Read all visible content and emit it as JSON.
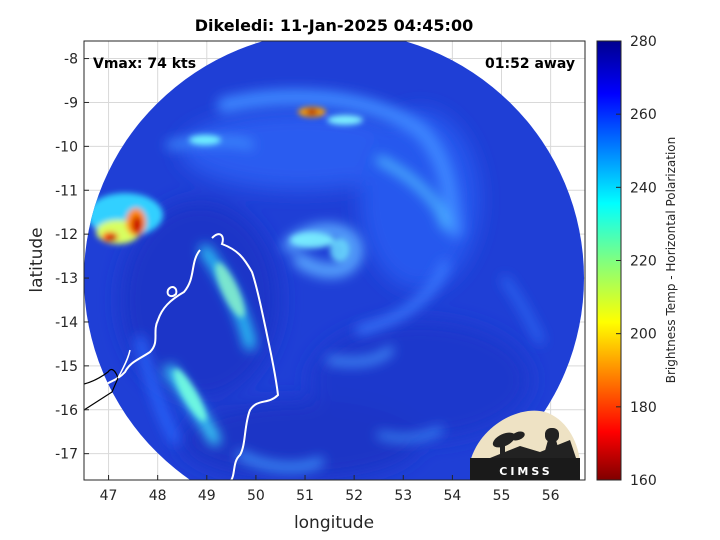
{
  "title": "Dikeledi: 11-Jan-2025 04:45:00",
  "annotations": {
    "vmax": "Vmax: 74 kts",
    "time_offset": "01:52 away"
  },
  "axes": {
    "xlabel": "longitude",
    "ylabel": "latitude",
    "xlim": [
      46.5,
      56.7
    ],
    "ylim": [
      -17.6,
      -7.6
    ],
    "xticks": [
      "47",
      "48",
      "49",
      "50",
      "51",
      "52",
      "53",
      "54",
      "55",
      "56"
    ],
    "yticks": [
      "-8",
      "-9",
      "-10",
      "-11",
      "-12",
      "-13",
      "-14",
      "-15",
      "-16",
      "-17"
    ],
    "grid": true
  },
  "colorbar": {
    "label": "Brightness Temp - Horizontal Polarization",
    "range": [
      160,
      280
    ],
    "ticks": [
      "280",
      "260",
      "240",
      "220",
      "200",
      "180",
      "160"
    ],
    "colormap": "jet"
  },
  "logo": {
    "text": "CIMSS"
  },
  "colors": {
    "background": "#1e3fd8",
    "coast": "#ffffff",
    "land_outline": "#000000"
  }
}
